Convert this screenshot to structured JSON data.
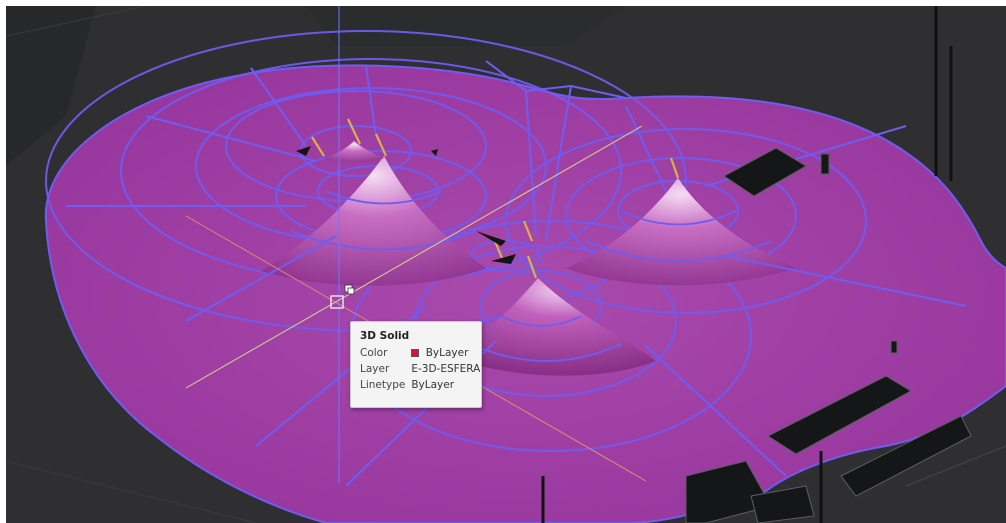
{
  "tooltip": {
    "title": "3D Solid",
    "rows": [
      {
        "label": "Color",
        "value": "ByLayer",
        "swatch_color": "#e0103a"
      },
      {
        "label": "Layer",
        "value": "E-3D-ESFERA"
      },
      {
        "label": "Linetype",
        "value": "ByLayer"
      }
    ]
  },
  "colors": {
    "viewport_background": "#2f2f31",
    "solid_fill": "#a23ea6",
    "solid_edge": "#6f5cf0",
    "cone_highlight": "#f4d8f2",
    "crosshair_x": "#e08770",
    "crosshair_y": "#d8d48c",
    "crosshair_z": "#6f73ff",
    "building_fill": "#141618"
  },
  "icons": {
    "cursor_pickbox": "square-pickbox-icon",
    "selection_badge": "selection-cursor-badge-icon"
  }
}
